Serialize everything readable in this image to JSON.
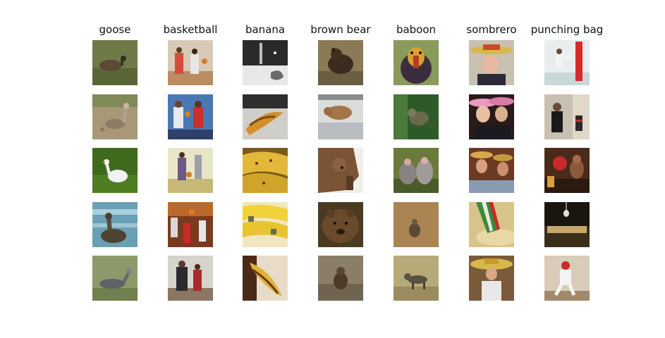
{
  "figure": {
    "classes": [
      {
        "label": "goose",
        "count": 5
      },
      {
        "label": "basketball",
        "count": 5
      },
      {
        "label": "banana",
        "count": 5
      },
      {
        "label": "brown bear",
        "count": 5
      },
      {
        "label": "baboon",
        "count": 5
      },
      {
        "label": "sombrero",
        "count": 5
      },
      {
        "label": "punching bag",
        "count": 5
      }
    ]
  }
}
